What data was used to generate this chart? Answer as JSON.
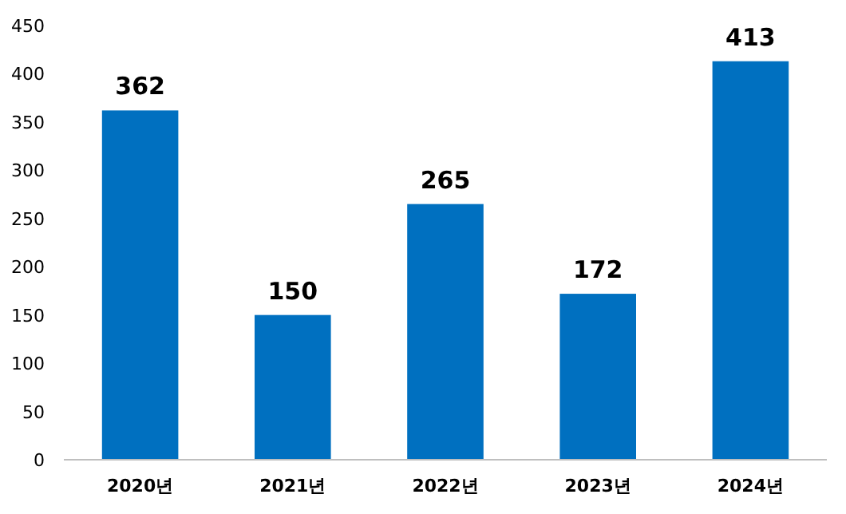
{
  "chart_data": {
    "type": "bar",
    "categories": [
      "2020년",
      "2021년",
      "2022년",
      "2023년",
      "2024년"
    ],
    "values": [
      362,
      150,
      265,
      172,
      413
    ],
    "color": "#0070c0",
    "ylim": [
      0,
      450
    ],
    "yticks": [
      0,
      50,
      100,
      150,
      200,
      250,
      300,
      350,
      400,
      450
    ],
    "data_labels": true
  }
}
